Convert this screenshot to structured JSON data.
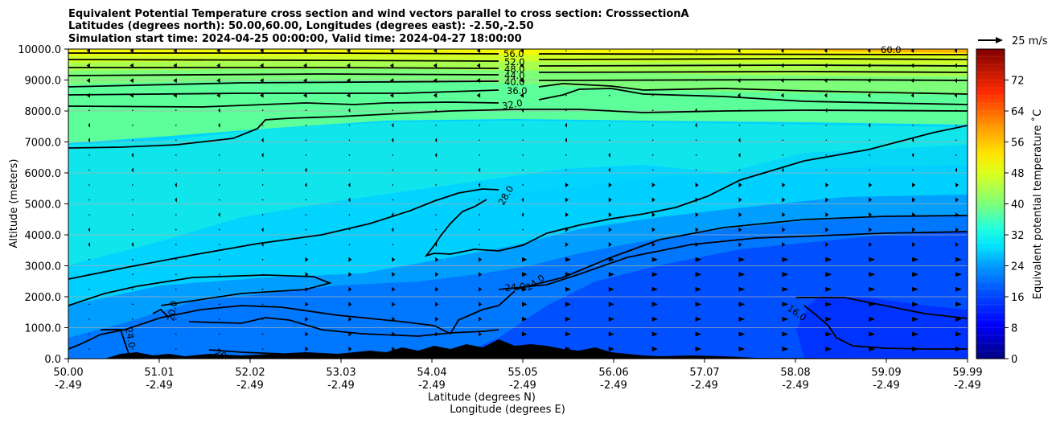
{
  "chart_data": {
    "type": "heatmap",
    "title_lines": [
      "Equivalent Potential Temperature cross section and wind vectors parallel to cross section: CrosssectionA",
      "Latitudes (degrees north): 50.00,60.00, Longitudes (degrees east): -2.50,-2.50",
      "Simulation start time: 2024-04-25 00:00:00, Valid time: 2024-04-27 18:00:00"
    ],
    "ylabel": "Altitude (meters)",
    "xlabel_lat": "Latitude (degrees N)",
    "xlabel_lon": "Longitude (degrees E)",
    "ylim": [
      0,
      10000
    ],
    "xlim": [
      50.0,
      59.99
    ],
    "y_ticks": [
      "0.0",
      "1000.0",
      "2000.0",
      "3000.0",
      "4000.0",
      "5000.0",
      "6000.0",
      "7000.0",
      "8000.0",
      "9000.0",
      "10000.0"
    ],
    "y_tick_values": [
      0,
      1000,
      2000,
      3000,
      4000,
      5000,
      6000,
      7000,
      8000,
      9000,
      10000
    ],
    "x_ticks_lat": [
      "50.00",
      "51.01",
      "52.02",
      "53.03",
      "54.04",
      "55.05",
      "56.06",
      "57.07",
      "58.08",
      "59.09",
      "59.99"
    ],
    "x_ticks_lon": [
      "-2.49",
      "-2.49",
      "-2.49",
      "-2.49",
      "-2.49",
      "-2.49",
      "-2.49",
      "-2.49",
      "-2.49",
      "-2.49",
      "-2.49"
    ],
    "colorbar": {
      "label": "Equivalent potential temperature ˚C",
      "range": [
        0,
        80
      ],
      "ticks": [
        "0",
        "8",
        "16",
        "24",
        "32",
        "40",
        "48",
        "56",
        "64",
        "72"
      ],
      "tick_values": [
        0,
        8,
        16,
        24,
        32,
        40,
        48,
        56,
        64,
        72
      ],
      "colormap": "jet"
    },
    "quiver_key": "25 m/s",
    "contour_labels": [
      {
        "text": "56.0",
        "lat": 55.1,
        "alt": 9850
      },
      {
        "text": "52.0",
        "lat": 55.1,
        "alt": 9650
      },
      {
        "text": "48.0",
        "lat": 55.1,
        "alt": 9450
      },
      {
        "text": "44.0",
        "lat": 55.1,
        "alt": 9250
      },
      {
        "text": "40.0",
        "lat": 55.1,
        "alt": 9050
      },
      {
        "text": "36.0",
        "lat": 55.2,
        "alt": 8750
      },
      {
        "text": "32.0",
        "lat": 54.9,
        "alt": 8100
      },
      {
        "text": "60.0",
        "lat": 59.3,
        "alt": 9950
      },
      {
        "text": "28.0",
        "lat": 54.9,
        "alt": 5250
      },
      {
        "text": "24.0",
        "lat": 54.7,
        "alt": 2300
      },
      {
        "text": "24.0",
        "lat": 55.1,
        "alt": 2400
      },
      {
        "text": "20.0",
        "lat": 51.2,
        "alt": 1500
      },
      {
        "text": "24.0",
        "lat": 50.7,
        "alt": 600
      },
      {
        "text": "20",
        "lat": 51.7,
        "alt": 200
      },
      {
        "text": "16.0",
        "lat": 58.1,
        "alt": 1500
      }
    ],
    "equivalent_potential_temperature_levels_C": [
      {
        "alt": 0,
        "value": 20
      },
      {
        "alt": 2000,
        "value": 24
      },
      {
        "alt": 5000,
        "value": 28
      },
      {
        "alt": 8000,
        "value": 32
      },
      {
        "alt": 8800,
        "value": 36
      },
      {
        "alt": 9200,
        "value": 44
      },
      {
        "alt": 9800,
        "value": 56
      }
    ]
  }
}
